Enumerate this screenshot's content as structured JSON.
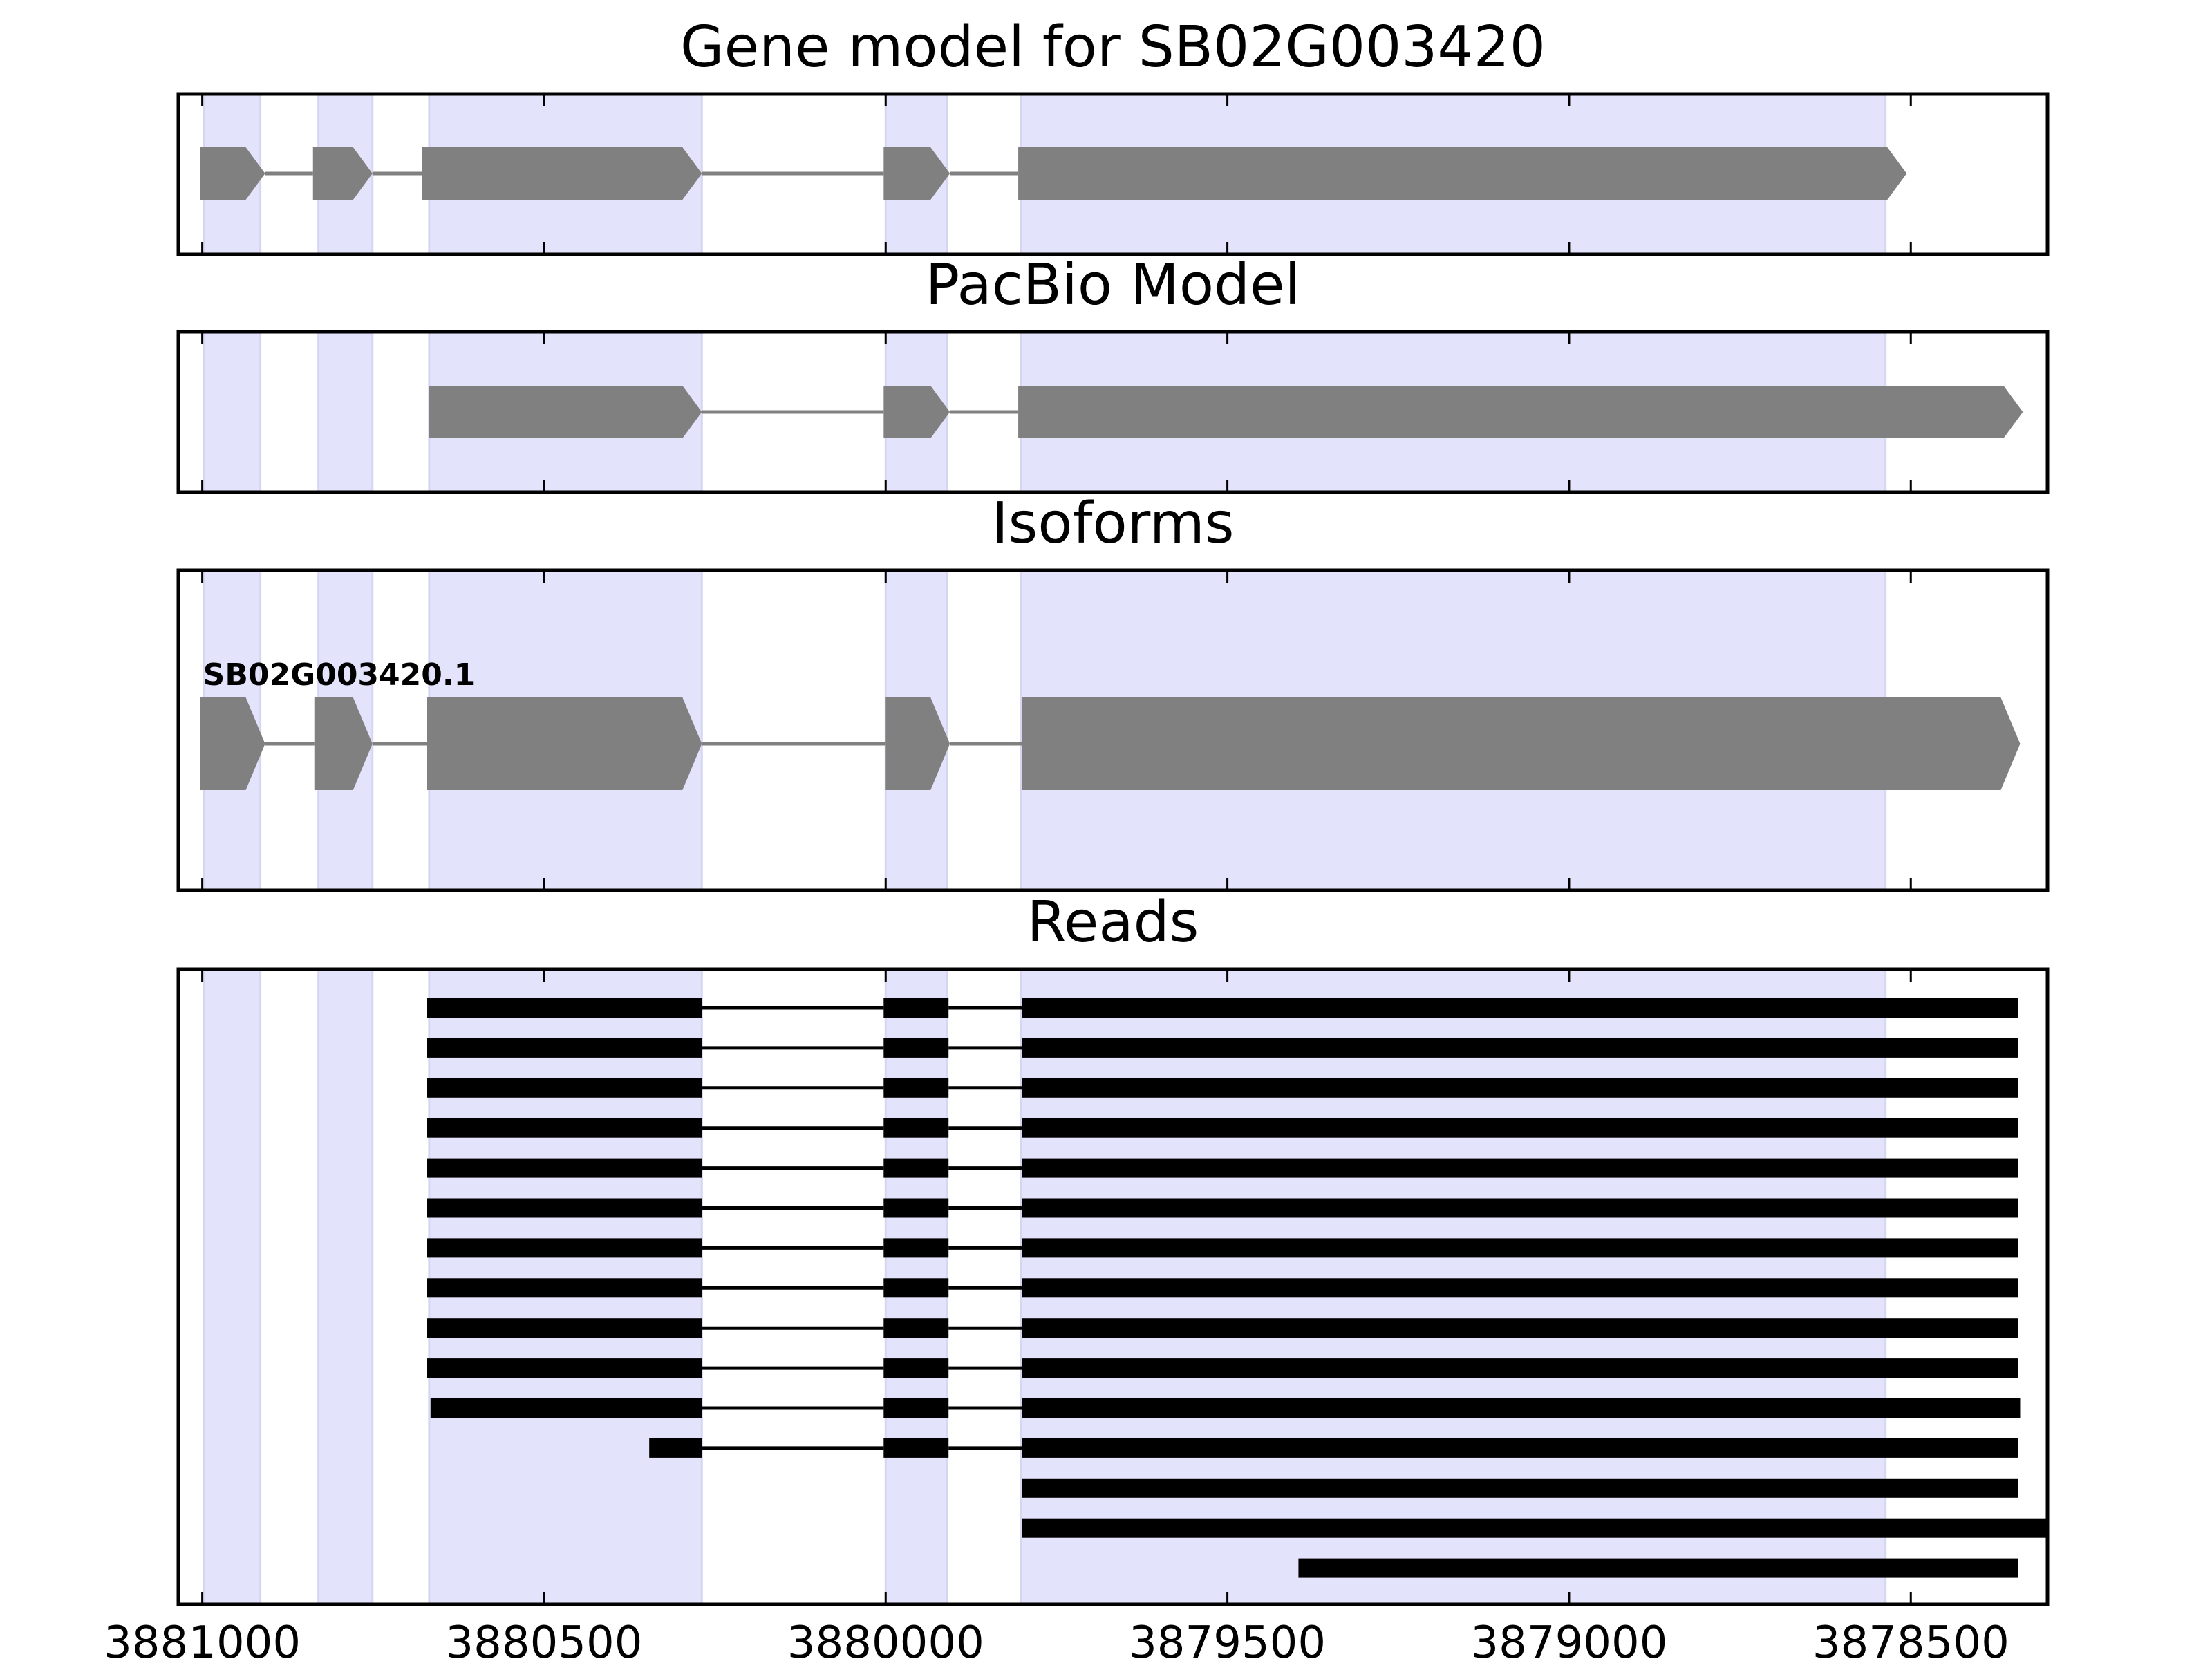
{
  "chart_data": {
    "type": "gene-model-track-plot",
    "x_axis": {
      "direction": "decreasing",
      "min": 3881035,
      "max": 3878300,
      "ticks": [
        3881000,
        3880500,
        3880000,
        3879500,
        3879000,
        3878500
      ],
      "tick_labels": [
        "3881000",
        "3880500",
        "3880000",
        "3879500",
        "3879000",
        "3878500"
      ]
    },
    "exon_shading": {
      "color": "#e3e3fb",
      "regions": [
        [
          3880998,
          3880915
        ],
        [
          3880830,
          3880751
        ],
        [
          3880668,
          3880269
        ],
        [
          3880000,
          3879910
        ],
        [
          3879802,
          3878537
        ]
      ]
    },
    "panels": [
      {
        "id": "gene-model",
        "title": "Gene model for SB02G003420",
        "transcripts": [
          {
            "exons": [
              [
                3881003,
                3880908
              ],
              [
                3880838,
                3880751
              ],
              [
                3880678,
                3880269
              ],
              [
                3880003,
                3879906
              ],
              [
                3879806,
                3878506
              ]
            ]
          }
        ]
      },
      {
        "id": "pacbio-model",
        "title": "PacBio Model",
        "transcripts": [
          {
            "exons": [
              [
                3880668,
                3880269
              ],
              [
                3880003,
                3879906
              ],
              [
                3879806,
                3878336
              ]
            ]
          }
        ]
      },
      {
        "id": "isoforms",
        "title": "Isoforms",
        "transcripts": [
          {
            "label": "SB02G003420.1",
            "exons": [
              [
                3881003,
                3880908
              ],
              [
                3880836,
                3880751
              ],
              [
                3880671,
                3880269
              ],
              [
                3880000,
                3879906
              ],
              [
                3879800,
                3878340
              ]
            ]
          }
        ]
      },
      {
        "id": "reads",
        "title": "Reads",
        "reads": [
          {
            "exons": [
              [
                3880671,
                3880269
              ],
              [
                3880003,
                3879908
              ],
              [
                3879800,
                3878343
              ]
            ]
          },
          {
            "exons": [
              [
                3880671,
                3880269
              ],
              [
                3880003,
                3879908
              ],
              [
                3879800,
                3878343
              ]
            ]
          },
          {
            "exons": [
              [
                3880671,
                3880269
              ],
              [
                3880003,
                3879908
              ],
              [
                3879800,
                3878343
              ]
            ]
          },
          {
            "exons": [
              [
                3880671,
                3880269
              ],
              [
                3880003,
                3879908
              ],
              [
                3879800,
                3878343
              ]
            ]
          },
          {
            "exons": [
              [
                3880671,
                3880269
              ],
              [
                3880003,
                3879908
              ],
              [
                3879800,
                3878343
              ]
            ]
          },
          {
            "exons": [
              [
                3880671,
                3880269
              ],
              [
                3880003,
                3879908
              ],
              [
                3879800,
                3878343
              ]
            ]
          },
          {
            "exons": [
              [
                3880671,
                3880269
              ],
              [
                3880003,
                3879908
              ],
              [
                3879800,
                3878343
              ]
            ]
          },
          {
            "exons": [
              [
                3880671,
                3880269
              ],
              [
                3880003,
                3879908
              ],
              [
                3879800,
                3878343
              ]
            ]
          },
          {
            "exons": [
              [
                3880671,
                3880269
              ],
              [
                3880003,
                3879908
              ],
              [
                3879800,
                3878343
              ]
            ]
          },
          {
            "exons": [
              [
                3880671,
                3880269
              ],
              [
                3880003,
                3879908
              ],
              [
                3879800,
                3878343
              ]
            ]
          },
          {
            "exons": [
              [
                3880666,
                3880269
              ],
              [
                3880003,
                3879908
              ],
              [
                3879800,
                3878340
              ]
            ]
          },
          {
            "exons": [
              [
                3880346,
                3880269
              ],
              [
                3880003,
                3879908
              ],
              [
                3879800,
                3878343
              ]
            ]
          },
          {
            "exons": [
              [
                3879800,
                3878343
              ]
            ]
          },
          {
            "exons": [
              [
                3879800,
                3878300
              ]
            ]
          },
          {
            "exons": [
              [
                3879396,
                3878343
              ]
            ]
          }
        ]
      }
    ]
  }
}
